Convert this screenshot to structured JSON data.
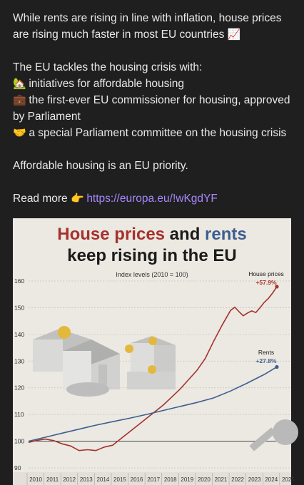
{
  "post": {
    "line1": "While rents are rising in line with inflation, house prices are rising much faster in most EU countries",
    "line1_emoji": "📈",
    "intro": "The EU tackles the housing crisis with:",
    "bullets": [
      {
        "emoji": "🏡",
        "text": "initiatives for affordable housing"
      },
      {
        "emoji": "💼",
        "text": "the first-ever EU commissioner for housing, approved by Parliament"
      },
      {
        "emoji": "🤝",
        "text": "a special Parliament committee on the housing crisis"
      }
    ],
    "closing": "Affordable housing is an EU priority.",
    "read_more": "Read more",
    "read_more_emoji": "👉",
    "link": "https://europa.eu/!wKgdYF"
  },
  "chart_data": {
    "type": "line",
    "title_part1": "House prices",
    "title_part2": " and ",
    "title_part3": "rents",
    "title_line2": "keep rising in the EU",
    "subtitle": "Index levels (2010 = 100)",
    "ylim": [
      90,
      160
    ],
    "yticks": [
      90,
      100,
      110,
      120,
      130,
      140,
      150,
      160
    ],
    "xticks": [
      "2010",
      "2011",
      "2012",
      "2013",
      "2014",
      "2015",
      "2016",
      "2017",
      "2018",
      "2019",
      "2020",
      "2021",
      "2022",
      "2023",
      "2024",
      "2025"
    ],
    "colors": {
      "house": "#a5322c",
      "rents": "#3c5f8f",
      "grid": "#c9c4bd"
    },
    "series": [
      {
        "name": "House prices",
        "change": "+57.9%",
        "x": [
          2010.0,
          2010.5,
          2011.0,
          2011.5,
          2012.0,
          2012.5,
          2013.0,
          2013.5,
          2014.0,
          2014.5,
          2015.0,
          2015.5,
          2016.0,
          2016.5,
          2017.0,
          2017.5,
          2018.0,
          2018.5,
          2019.0,
          2019.5,
          2020.0,
          2020.5,
          2021.0,
          2021.5,
          2022.0,
          2022.25,
          2022.5,
          2022.75,
          2023.0,
          2023.25,
          2023.5,
          2023.75,
          2024.0,
          2024.25,
          2024.5,
          2024.75
        ],
        "values": [
          99.5,
          100.3,
          100.8,
          100.2,
          99.0,
          98.2,
          96.5,
          96.8,
          96.5,
          97.8,
          98.5,
          101.0,
          103.5,
          106.0,
          108.5,
          111.0,
          113.5,
          116.5,
          119.5,
          123.0,
          126.5,
          131.0,
          137.5,
          143.5,
          149.0,
          150.2,
          148.5,
          147.0,
          148.0,
          148.8,
          148.2,
          150.0,
          152.0,
          153.5,
          155.5,
          157.9
        ]
      },
      {
        "name": "Rents",
        "change": "+27.8%",
        "x": [
          2010.0,
          2011.0,
          2012.0,
          2013.0,
          2014.0,
          2015.0,
          2016.0,
          2017.0,
          2018.0,
          2019.0,
          2020.0,
          2021.0,
          2022.0,
          2023.0,
          2024.0,
          2024.75
        ],
        "values": [
          100.0,
          101.5,
          103.0,
          104.5,
          106.0,
          107.3,
          108.6,
          110.0,
          111.5,
          113.0,
          114.5,
          116.2,
          118.8,
          121.8,
          125.0,
          127.8
        ]
      }
    ]
  }
}
